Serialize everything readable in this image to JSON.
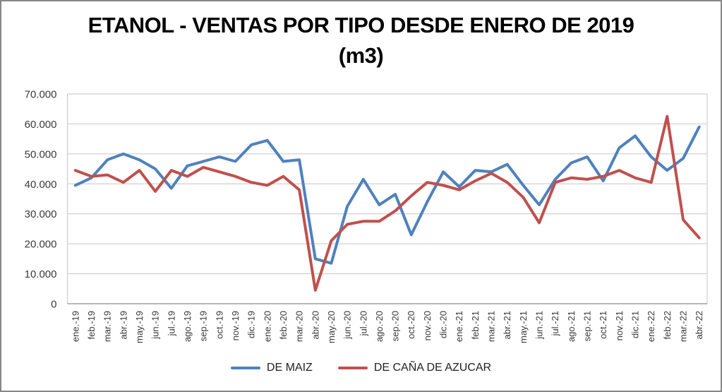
{
  "title": {
    "line1": "ETANOL - VENTAS POR TIPO DESDE ENERO DE 2019",
    "line2": "(m3)"
  },
  "chart_data": {
    "type": "line",
    "title": "ETANOL - VENTAS POR TIPO DESDE ENERO DE 2019 (m3)",
    "categories": [
      "ene.-19",
      "feb.-19",
      "mar.-19",
      "abr.-19",
      "may.-19",
      "jun.-19",
      "jul.-19",
      "ago.-19",
      "sep.-19",
      "oct.-19",
      "nov.-19",
      "dic.-19",
      "ene.-20",
      "feb.-20",
      "mar.-20",
      "abr.-20",
      "may.-20",
      "jun.-20",
      "jul.-20",
      "ago.-20",
      "sep.-20",
      "oct.-20",
      "nov.-20",
      "dic.-20",
      "ene.-21",
      "feb.-21",
      "mar.-21",
      "abr.-21",
      "may.-21",
      "jun.-21",
      "jul.-21",
      "ago.-21",
      "sep.-21",
      "oct.-21",
      "nov.-21",
      "dic.-21",
      "ene.-22",
      "feb.-22",
      "mar.-22",
      "abr.-22"
    ],
    "series": [
      {
        "name": "DE MAIZ",
        "color": "#4F81BD",
        "values": [
          39500,
          42000,
          48000,
          50000,
          48000,
          45000,
          38500,
          46000,
          47500,
          49000,
          47500,
          53000,
          54500,
          47500,
          48000,
          15000,
          13500,
          32500,
          41500,
          33000,
          36500,
          23000,
          34000,
          44000,
          39000,
          44500,
          44000,
          46500,
          39500,
          33000,
          41500,
          47000,
          49000,
          41000,
          52000,
          56000,
          49000,
          44500,
          48500,
          59000
        ]
      },
      {
        "name": "DE CAÑA DE AZUCAR",
        "color": "#C0504D",
        "values": [
          44500,
          42500,
          43000,
          40500,
          44500,
          37500,
          44500,
          42500,
          45500,
          44000,
          42500,
          40500,
          39500,
          42500,
          38000,
          4500,
          21000,
          26500,
          27500,
          27500,
          31000,
          36000,
          40500,
          39500,
          38000,
          41000,
          43500,
          40500,
          35500,
          27000,
          40500,
          42000,
          41500,
          42500,
          44500,
          42000,
          40500,
          62500,
          28000,
          22000
        ]
      }
    ],
    "ylim": [
      0,
      70000
    ],
    "ytick_interval": 10000,
    "ytick_labels": [
      "0",
      "10.000",
      "20.000",
      "30.000",
      "40.000",
      "50.000",
      "60.000",
      "70.000"
    ],
    "grid": true,
    "legend_position": "bottom",
    "colors": {
      "gridline": "#C6C6C6",
      "axis": "#8C8C8C",
      "tick_label": "#3A3A3A",
      "background": "#FFFFFF"
    }
  }
}
